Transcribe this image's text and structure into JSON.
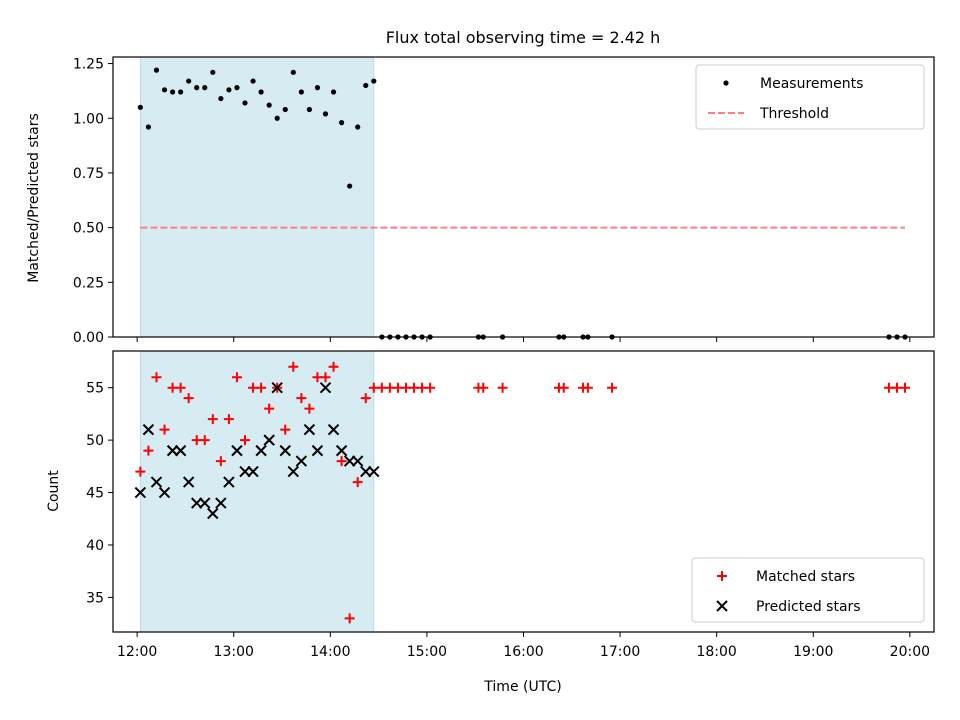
{
  "chart_data": [
    {
      "type": "scatter",
      "title": "Flux total observing time = 2.42 h",
      "xlabel": "",
      "ylabel": "Matched/Predicted stars",
      "xlim": [
        "11:45",
        "20:15"
      ],
      "ylim": [
        0,
        1.28
      ],
      "yticks": [
        0,
        0.25,
        0.5,
        0.75,
        1.0,
        1.25
      ],
      "ytick_labels": [
        "0.00",
        "0.25",
        "0.50",
        "0.75",
        "1.00",
        "1.25"
      ],
      "x_tick_labels_shown": false,
      "shaded_interval": {
        "start": "12:02",
        "end": "14:27",
        "color": "#add8e6"
      },
      "legend_position": "upper right",
      "legend": [
        {
          "label": "Measurements",
          "marker": "dot",
          "color": "#000000"
        },
        {
          "label": "Threshold",
          "marker": "dashed-line",
          "color": "#ff7f7f"
        }
      ],
      "series": [
        {
          "name": "Measurements",
          "marker": "dot",
          "color": "#000000",
          "x": [
            "12:02",
            "12:07",
            "12:12",
            "12:17",
            "12:22",
            "12:27",
            "12:32",
            "12:37",
            "12:42",
            "12:47",
            "12:52",
            "12:57",
            "13:02",
            "13:07",
            "13:12",
            "13:17",
            "13:22",
            "13:27",
            "13:32",
            "13:37",
            "13:42",
            "13:47",
            "13:52",
            "13:57",
            "14:02",
            "14:07",
            "14:12",
            "14:17",
            "14:22",
            "14:27",
            "14:32",
            "14:37",
            "14:42",
            "14:47",
            "14:52",
            "14:57",
            "15:02",
            "15:32",
            "15:35",
            "15:47",
            "16:22",
            "16:25",
            "16:37",
            "16:40",
            "16:55",
            "19:47",
            "19:52",
            "19:57"
          ],
          "y": [
            1.05,
            0.96,
            1.22,
            1.13,
            1.12,
            1.12,
            1.17,
            1.14,
            1.14,
            1.21,
            1.09,
            1.13,
            1.14,
            1.07,
            1.17,
            1.12,
            1.06,
            1.0,
            1.04,
            1.21,
            1.12,
            1.04,
            1.14,
            1.02,
            1.12,
            0.98,
            0.69,
            0.96,
            1.15,
            1.17,
            0,
            0,
            0,
            0,
            0,
            0,
            0,
            0,
            0,
            0,
            0,
            0,
            0,
            0,
            0,
            0,
            0,
            0
          ]
        },
        {
          "name": "Threshold",
          "type": "line",
          "style": "dashed",
          "color": "#ff7f7f",
          "x": [
            "12:02",
            "19:57"
          ],
          "y": [
            0.5,
            0.5
          ]
        }
      ]
    },
    {
      "type": "scatter",
      "title": "",
      "xlabel": "Time (UTC)",
      "ylabel": "Count",
      "xlim": [
        "11:45",
        "20:15"
      ],
      "ylim": [
        31.7,
        58.5
      ],
      "yticks": [
        35,
        40,
        45,
        50,
        55
      ],
      "ytick_labels": [
        "35",
        "40",
        "45",
        "50",
        "55"
      ],
      "xticks": [
        "12:00",
        "13:00",
        "14:00",
        "15:00",
        "16:00",
        "17:00",
        "18:00",
        "19:00",
        "20:00"
      ],
      "shaded_interval": {
        "start": "12:02",
        "end": "14:27",
        "color": "#add8e6"
      },
      "legend_position": "lower right",
      "legend": [
        {
          "label": "Matched stars",
          "marker": "plus",
          "color": "#ff0000"
        },
        {
          "label": "Predicted stars",
          "marker": "x",
          "color": "#000000"
        }
      ],
      "series": [
        {
          "name": "Matched stars",
          "marker": "plus",
          "color": "#ff0000",
          "x": [
            "12:02",
            "12:07",
            "12:12",
            "12:17",
            "12:22",
            "12:27",
            "12:32",
            "12:37",
            "12:42",
            "12:47",
            "12:52",
            "12:57",
            "13:02",
            "13:07",
            "13:12",
            "13:17",
            "13:22",
            "13:27",
            "13:32",
            "13:37",
            "13:42",
            "13:47",
            "13:52",
            "13:57",
            "14:02",
            "14:07",
            "14:12",
            "14:17",
            "14:22",
            "14:27",
            "14:32",
            "14:37",
            "14:42",
            "14:47",
            "14:52",
            "14:57",
            "15:02",
            "15:32",
            "15:35",
            "15:47",
            "16:22",
            "16:25",
            "16:37",
            "16:40",
            "16:55",
            "19:47",
            "19:52",
            "19:57"
          ],
          "y": [
            47,
            49,
            56,
            51,
            55,
            55,
            54,
            50,
            50,
            52,
            48,
            52,
            56,
            50,
            55,
            55,
            53,
            55,
            51,
            57,
            54,
            53,
            56,
            56,
            57,
            48,
            33,
            46,
            54,
            55,
            55,
            55,
            55,
            55,
            55,
            55,
            55,
            55,
            55,
            55,
            55,
            55,
            55,
            55,
            55,
            55,
            55,
            55
          ]
        },
        {
          "name": "Predicted stars",
          "marker": "x",
          "color": "#000000",
          "x": [
            "12:02",
            "12:07",
            "12:12",
            "12:17",
            "12:22",
            "12:27",
            "12:32",
            "12:37",
            "12:42",
            "12:47",
            "12:52",
            "12:57",
            "13:02",
            "13:07",
            "13:12",
            "13:17",
            "13:22",
            "13:27",
            "13:32",
            "13:37",
            "13:42",
            "13:47",
            "13:52",
            "13:57",
            "14:02",
            "14:07",
            "14:12",
            "14:17",
            "14:22",
            "14:27"
          ],
          "y": [
            45,
            51,
            46,
            45,
            49,
            49,
            46,
            44,
            44,
            43,
            44,
            46,
            49,
            47,
            47,
            49,
            50,
            55,
            49,
            47,
            48,
            51,
            49,
            55,
            51,
            49,
            48,
            48,
            47,
            47
          ]
        }
      ]
    }
  ]
}
